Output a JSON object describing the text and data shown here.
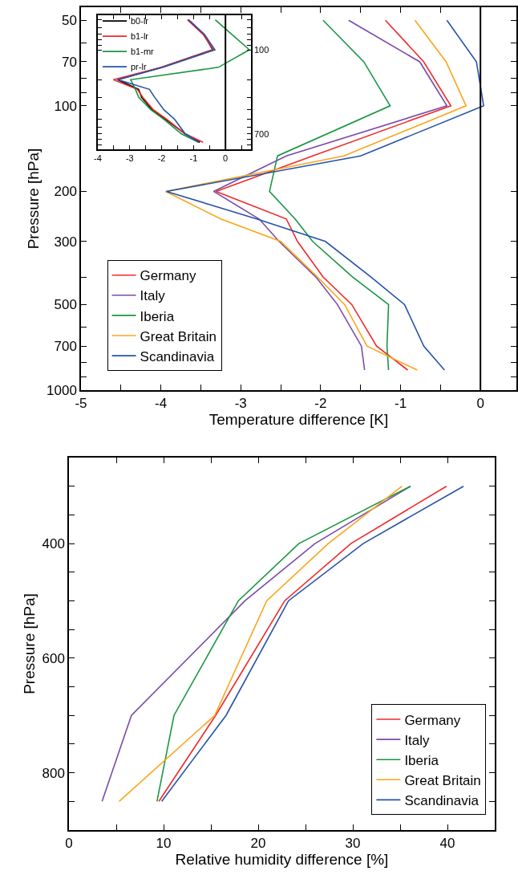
{
  "chart_data": [
    {
      "type": "line",
      "xlabel": "Temperature difference [K]",
      "ylabel": "Pressure [hPa]",
      "log": "y",
      "legend": "bottom left",
      "line_style": "solid",
      "xlim": [
        -5,
        0.45
      ],
      "ylim": [
        1000,
        45
      ],
      "xticks": [
        -5,
        {
          "value": -4.5,
          "label": null
        },
        -4,
        {
          "value": -3.5,
          "label": null
        },
        -3,
        {
          "value": -2.5,
          "label": null
        },
        -2,
        {
          "value": -1.5,
          "label": null
        },
        -1,
        {
          "value": -0.5,
          "label": null
        },
        0
      ],
      "yticks": [
        50,
        {
          "value": 60,
          "label": null
        },
        70,
        {
          "value": 80,
          "label": null
        },
        {
          "value": 90,
          "label": null
        },
        100,
        200,
        300,
        {
          "value": 400,
          "label": null
        },
        500,
        {
          "value": 600,
          "label": null
        },
        700,
        {
          "value": 800,
          "label": null
        },
        {
          "value": 900,
          "label": null
        },
        1000
      ],
      "ref_lines": [
        {
          "axis": "x",
          "value": 0,
          "color": "#000000"
        }
      ],
      "series": [
        {
          "name": "Germany",
          "color": "#ee2a2a",
          "x": [
            -1.19,
            -0.71,
            -0.37,
            -2.1,
            -3.31,
            -2.43,
            -2.29,
            -1.97,
            -1.61,
            -1.3,
            -0.91
          ],
          "values": [
            50,
            70,
            100,
            150,
            200,
            250,
            300,
            400,
            500,
            700,
            850
          ]
        },
        {
          "name": "Italy",
          "color": "#7a4aaa",
          "x": [
            -1.65,
            -0.76,
            -0.42,
            -2.43,
            -3.34,
            -2.77,
            -2.52,
            -2.06,
            -1.79,
            -1.49,
            -1.45
          ],
          "values": [
            50,
            70,
            100,
            150,
            200,
            250,
            300,
            400,
            500,
            700,
            850
          ]
        },
        {
          "name": "Iberia",
          "color": "#1a9641",
          "x": [
            -1.97,
            -1.46,
            -1.13,
            -2.54,
            -2.64,
            -2.32,
            -2.1,
            -1.6,
            -1.15,
            -1.17,
            -1.15
          ],
          "values": [
            50,
            70,
            100,
            150,
            200,
            250,
            300,
            400,
            500,
            700,
            850
          ]
        },
        {
          "name": "Great Britain",
          "color": "#fba51a",
          "x": [
            -0.82,
            -0.43,
            -0.18,
            -1.71,
            -3.94,
            -3.25,
            -2.5,
            -2.04,
            -1.7,
            -1.42,
            -0.79
          ],
          "values": [
            50,
            70,
            100,
            150,
            200,
            250,
            300,
            400,
            500,
            700,
            850
          ]
        },
        {
          "name": "Scandinavia",
          "color": "#2553a8",
          "x": [
            -0.42,
            -0.05,
            0.04,
            -1.5,
            -3.93,
            -2.8,
            -1.94,
            -1.37,
            -0.95,
            -0.71,
            -0.45
          ],
          "values": [
            50,
            70,
            100,
            150,
            200,
            250,
            300,
            400,
            500,
            700,
            850
          ]
        }
      ]
    },
    {
      "type": "line",
      "log": "y",
      "legend": "top left",
      "line_style": "solid",
      "xlim": [
        -4,
        0.8
      ],
      "ylim": [
        1000,
        45
      ],
      "xticks": [
        -4,
        {
          "value": -3.5,
          "label": null
        },
        -3,
        {
          "value": -2.5,
          "label": null
        },
        -2,
        {
          "value": -1.5,
          "label": null
        },
        -1,
        {
          "value": -0.5,
          "label": null
        },
        0,
        {
          "value": 0.5,
          "label": null
        }
      ],
      "yticks": [
        {
          "value": 50,
          "label": null
        },
        {
          "value": 60,
          "label": null
        },
        {
          "value": 70,
          "label": null
        },
        {
          "value": 80,
          "label": null
        },
        {
          "value": 90,
          "label": null
        },
        100,
        {
          "value": 200,
          "label": null
        },
        {
          "value": 300,
          "label": null
        },
        {
          "value": 400,
          "label": null
        },
        {
          "value": 500,
          "label": null
        },
        {
          "value": 600,
          "label": null
        },
        700,
        {
          "value": 800,
          "label": null
        },
        {
          "value": 900,
          "label": null
        }
      ],
      "ref_lines": [
        {
          "axis": "x",
          "value": 0,
          "color": "#000000"
        }
      ],
      "series": [
        {
          "name": "b0-lr",
          "color": "#000000",
          "x": [
            -1.18,
            -0.68,
            -0.4,
            -2.0,
            -3.38,
            -2.72,
            -2.63,
            -2.3,
            -1.88,
            -1.26,
            -0.8
          ],
          "values": [
            50,
            70,
            100,
            150,
            200,
            250,
            300,
            400,
            500,
            700,
            850
          ]
        },
        {
          "name": "b1-lr",
          "color": "#ee2a2a",
          "x": [
            -1.19,
            -0.7,
            -0.38,
            -2.0,
            -3.51,
            -2.76,
            -2.59,
            -2.26,
            -1.84,
            -1.26,
            -0.7
          ],
          "values": [
            50,
            70,
            100,
            150,
            200,
            250,
            300,
            400,
            500,
            700,
            850
          ]
        },
        {
          "name": "b1-mr",
          "color": "#1a9641",
          "x": [
            -0.32,
            0.2,
            0.75,
            -0.22,
            -2.97,
            -2.82,
            -2.72,
            -2.34,
            -1.93,
            -1.38,
            -0.84
          ],
          "values": [
            50,
            70,
            100,
            150,
            200,
            250,
            300,
            400,
            500,
            700,
            850
          ]
        },
        {
          "name": "pr-lr",
          "color": "#2553a8",
          "x": [
            -1.15,
            -0.66,
            -0.33,
            -1.95,
            -3.37,
            -2.38,
            -2.22,
            -1.93,
            -1.59,
            -1.26,
            -0.84
          ],
          "values": [
            50,
            70,
            100,
            150,
            200,
            250,
            300,
            400,
            500,
            700,
            850
          ]
        }
      ]
    },
    {
      "type": "line",
      "xlabel": "Relative humidity difference [%]",
      "ylabel": "Pressure [hPa]",
      "legend": "bottom right",
      "line_style": "solid",
      "xlim": [
        0,
        45
      ],
      "ylim": [
        900,
        250
      ],
      "xticks": [
        0,
        {
          "value": 5,
          "label": null
        },
        10,
        {
          "value": 15,
          "label": null
        },
        20,
        {
          "value": 25,
          "label": null
        },
        30,
        {
          "value": 35,
          "label": null
        },
        40
      ],
      "yticks": [
        {
          "value": 300,
          "label": null
        },
        {
          "value": 350,
          "label": null
        },
        400,
        {
          "value": 450,
          "label": null
        },
        {
          "value": 500,
          "label": null
        },
        {
          "value": 550,
          "label": null
        },
        600,
        {
          "value": 650,
          "label": null
        },
        {
          "value": 700,
          "label": null
        },
        {
          "value": 750,
          "label": null
        },
        800,
        {
          "value": 850,
          "label": null
        }
      ],
      "series": [
        {
          "name": "Germany",
          "color": "#ee2a2a",
          "x": [
            39.9,
            29.8,
            22.8,
            15.5,
            9.5
          ],
          "values": [
            300,
            400,
            500,
            700,
            850
          ]
        },
        {
          "name": "Italy",
          "color": "#7a4aaa",
          "x": [
            36.1,
            26.0,
            18.6,
            6.6,
            3.5
          ],
          "values": [
            300,
            400,
            500,
            700,
            850
          ]
        },
        {
          "name": "Iberia",
          "color": "#1a9641",
          "x": [
            36.1,
            24.3,
            17.9,
            11.1,
            9.3
          ],
          "values": [
            300,
            400,
            500,
            700,
            850
          ]
        },
        {
          "name": "Great Britain",
          "color": "#fba51a",
          "x": [
            35.2,
            27.4,
            20.9,
            15.4,
            5.3
          ],
          "values": [
            300,
            400,
            500,
            700,
            850
          ]
        },
        {
          "name": "Scandinavia",
          "color": "#2553a8",
          "x": [
            41.7,
            31.1,
            23.2,
            16.6,
            9.8
          ],
          "values": [
            300,
            400,
            500,
            700,
            850
          ]
        }
      ]
    }
  ]
}
